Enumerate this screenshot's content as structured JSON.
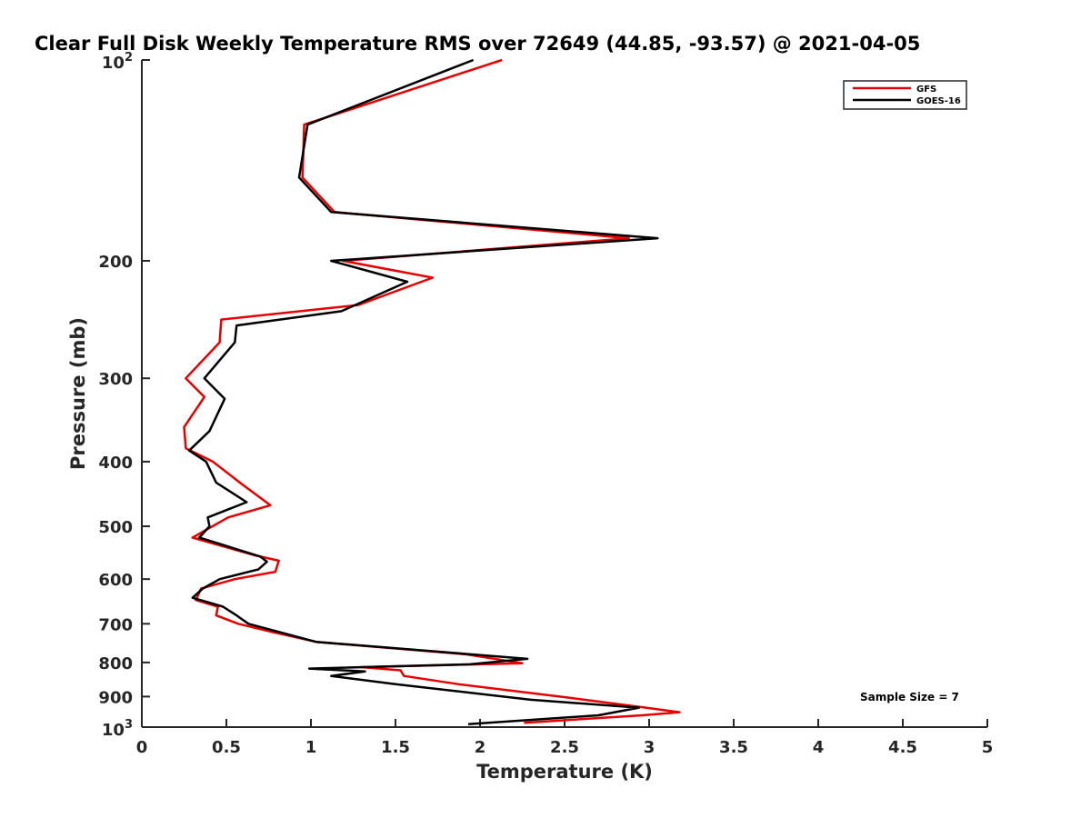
{
  "chart_data": {
    "type": "line",
    "title": "Clear Full Disk Weekly Temperature RMS over 72649 (44.85, -93.57) @ 2021-04-05",
    "xlabel": "Temperature (K)",
    "ylabel": "Pressure (mb)",
    "xlim": [
      0,
      5
    ],
    "ylim": [
      100,
      1000
    ],
    "y_scale": "log",
    "y_reversed": true,
    "grid": false,
    "legend_position": "top-right",
    "x_ticks": [
      "0",
      "0.5",
      "1",
      "1.5",
      "2",
      "2.5",
      "3",
      "3.5",
      "4",
      "4.5",
      "5"
    ],
    "y_ticks": [
      {
        "value": 100,
        "base": "10",
        "exp": "2"
      },
      {
        "value": 200,
        "label": "200"
      },
      {
        "value": 300,
        "label": "300"
      },
      {
        "value": 400,
        "label": "400"
      },
      {
        "value": 500,
        "label": "500"
      },
      {
        "value": 600,
        "label": "600"
      },
      {
        "value": 700,
        "label": "700"
      },
      {
        "value": 800,
        "label": "800"
      },
      {
        "value": 900,
        "label": "900"
      },
      {
        "value": 1000,
        "base": "10",
        "exp": "3"
      }
    ],
    "annotation": "Sample Size = 7",
    "series": [
      {
        "name": "GFS",
        "color": "#e60000",
        "points": [
          [
            2.13,
            100
          ],
          [
            0.96,
            125
          ],
          [
            0.95,
            150
          ],
          [
            1.14,
            169
          ],
          [
            2.88,
            185
          ],
          [
            1.19,
            200
          ],
          [
            1.72,
            212
          ],
          [
            1.28,
            233
          ],
          [
            0.47,
            245
          ],
          [
            0.46,
            265
          ],
          [
            0.26,
            300
          ],
          [
            0.37,
            320
          ],
          [
            0.25,
            355
          ],
          [
            0.26,
            382
          ],
          [
            0.42,
            400
          ],
          [
            0.58,
            430
          ],
          [
            0.76,
            465
          ],
          [
            0.51,
            485
          ],
          [
            0.3,
            520
          ],
          [
            0.66,
            552
          ],
          [
            0.81,
            563
          ],
          [
            0.79,
            585
          ],
          [
            0.55,
            600
          ],
          [
            0.35,
            620
          ],
          [
            0.32,
            645
          ],
          [
            0.45,
            660
          ],
          [
            0.44,
            680
          ],
          [
            0.57,
            700
          ],
          [
            0.77,
            720
          ],
          [
            1.03,
            745
          ],
          [
            1.92,
            778
          ],
          [
            2.25,
            802
          ],
          [
            1.3,
            813
          ],
          [
            1.53,
            822
          ],
          [
            1.55,
            838
          ],
          [
            1.87,
            862
          ],
          [
            2.52,
            903
          ],
          [
            2.98,
            935
          ],
          [
            3.18,
            950
          ],
          [
            2.96,
            960
          ],
          [
            2.26,
            985
          ]
        ]
      },
      {
        "name": "GOES-16",
        "color": "#000000",
        "points": [
          [
            1.96,
            100
          ],
          [
            0.98,
            125
          ],
          [
            0.93,
            150
          ],
          [
            1.12,
            169
          ],
          [
            3.05,
            185
          ],
          [
            1.12,
            200
          ],
          [
            1.57,
            215
          ],
          [
            1.18,
            238
          ],
          [
            0.56,
            250
          ],
          [
            0.55,
            265
          ],
          [
            0.37,
            300
          ],
          [
            0.49,
            322
          ],
          [
            0.4,
            360
          ],
          [
            0.28,
            385
          ],
          [
            0.38,
            400
          ],
          [
            0.44,
            430
          ],
          [
            0.62,
            460
          ],
          [
            0.39,
            485
          ],
          [
            0.4,
            500
          ],
          [
            0.34,
            520
          ],
          [
            0.7,
            555
          ],
          [
            0.74,
            565
          ],
          [
            0.69,
            580
          ],
          [
            0.46,
            600
          ],
          [
            0.36,
            620
          ],
          [
            0.3,
            640
          ],
          [
            0.48,
            660
          ],
          [
            0.56,
            680
          ],
          [
            0.63,
            700
          ],
          [
            1.03,
            745
          ],
          [
            2.28,
            790
          ],
          [
            1.94,
            805
          ],
          [
            0.99,
            817
          ],
          [
            1.32,
            825
          ],
          [
            1.12,
            838
          ],
          [
            1.5,
            862
          ],
          [
            2.3,
            910
          ],
          [
            2.94,
            935
          ],
          [
            2.7,
            960
          ],
          [
            1.93,
            990
          ]
        ]
      }
    ]
  }
}
